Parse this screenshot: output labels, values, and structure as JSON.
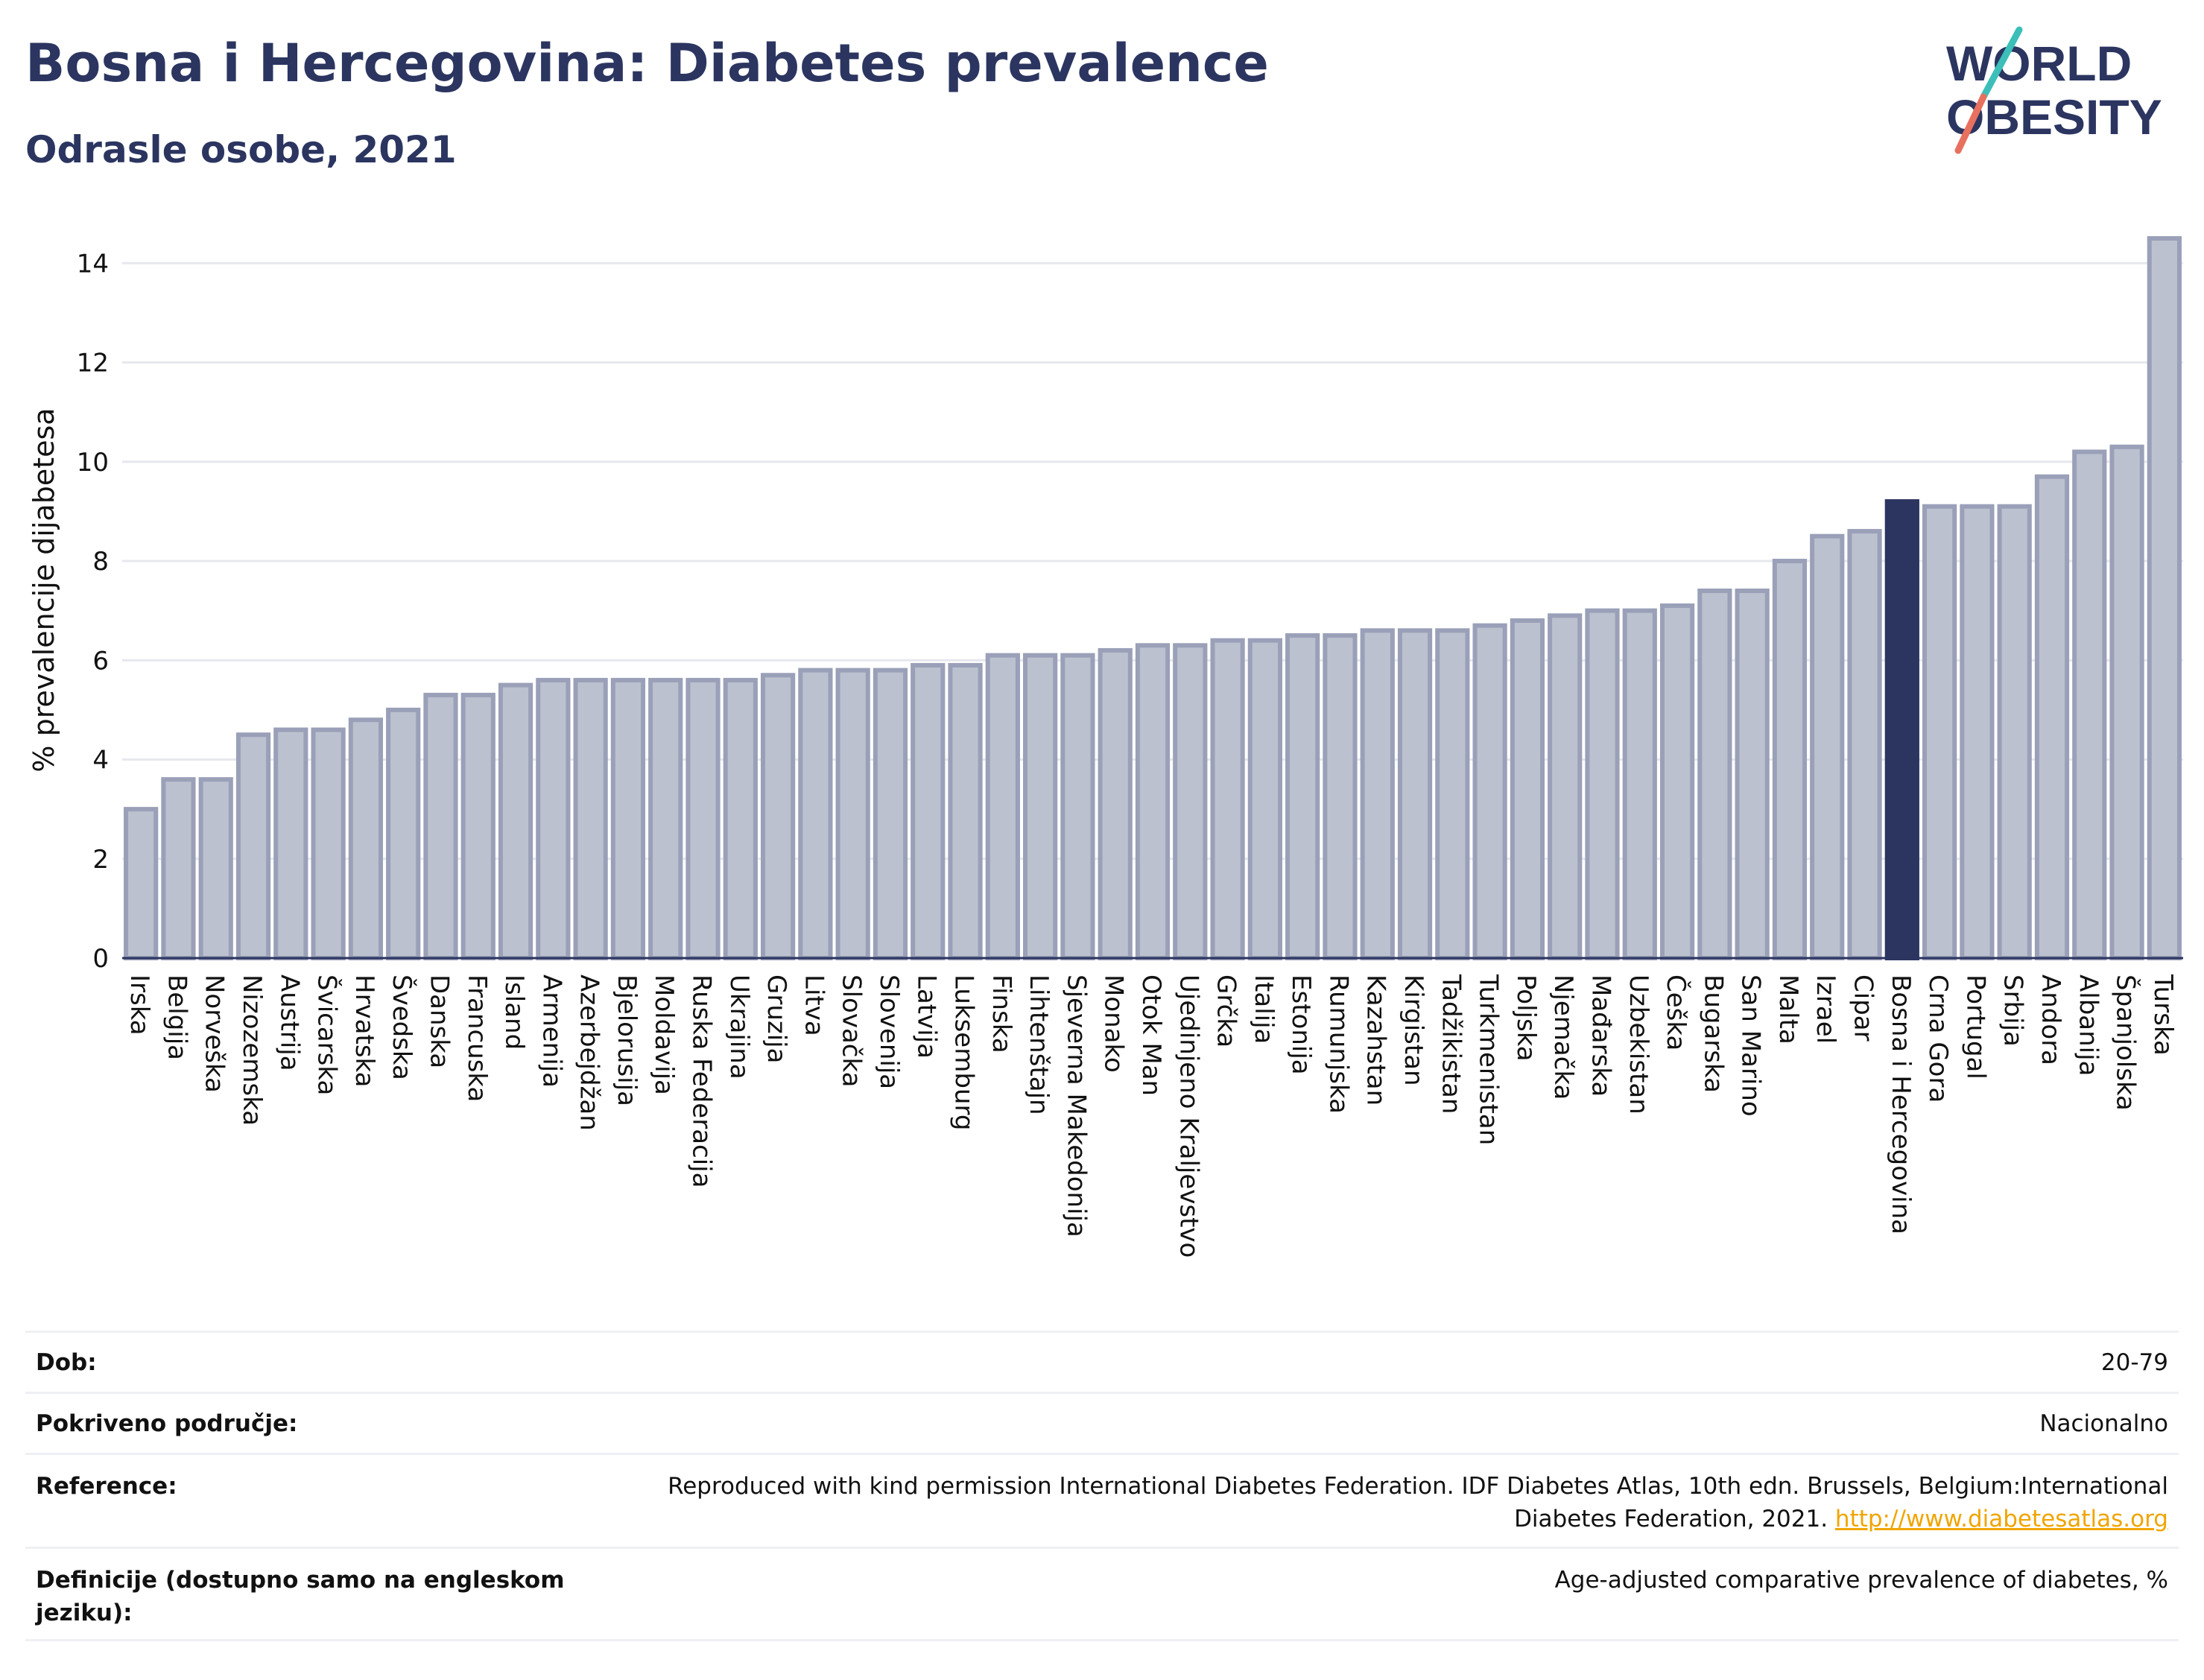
{
  "header": {
    "title": "Bosna i Hercegovina: Diabetes prevalence",
    "subtitle": "Odrasle osobe, 2021"
  },
  "logo": {
    "line1": "WORLD",
    "line2": "OBESITY",
    "accent_teal": "#3bbfb8",
    "accent_coral": "#e8705f",
    "text_color": "#2b3560"
  },
  "colors": {
    "bar_default": "#bcc1cf",
    "bar_border": "#9aa0b8",
    "bar_highlight": "#2b3560",
    "grid": "#e6e8ee",
    "text": "#2b3560"
  },
  "chart_data": {
    "type": "bar",
    "ylabel": "% prevalencije dijabetesa",
    "ylim": [
      0,
      14.8
    ],
    "yticks": [
      0,
      2,
      4,
      6,
      8,
      10,
      12,
      14
    ],
    "grid": true,
    "highlight": "Bosna i Hercegovina",
    "categories": [
      "Irska",
      "Belgija",
      "Norveška",
      "Nizozemska",
      "Austrija",
      "Švicarska",
      "Hrvatska",
      "Švedska",
      "Danska",
      "Francuska",
      "Island",
      "Armenija",
      "Azerbejdžan",
      "Bjelorusija",
      "Moldavija",
      "Ruska Federacija",
      "Ukrajina",
      "Gruzija",
      "Litva",
      "Slovačka",
      "Slovenija",
      "Latvija",
      "Luksemburg",
      "Finska",
      "Lihtenštajn",
      "Sjeverna Makedonija",
      "Monako",
      "Otok Man",
      "Ujedinjeno Kraljevstvo",
      "Grčka",
      "Italija",
      "Estonija",
      "Rumunjska",
      "Kazahstan",
      "Kirgistan",
      "Tadžikistan",
      "Turkmenistan",
      "Poljska",
      "Njemačka",
      "Mađarska",
      "Uzbekistan",
      "Češka",
      "Bugarska",
      "San Marino",
      "Malta",
      "Izrael",
      "Cipar",
      "Bosna i Hercegovina",
      "Crna Gora",
      "Portugal",
      "Srbija",
      "Andora",
      "Albanija",
      "Španjolska",
      "Turska"
    ],
    "values": [
      3.0,
      3.6,
      3.6,
      4.5,
      4.6,
      4.6,
      4.8,
      5.0,
      5.3,
      5.3,
      5.5,
      5.6,
      5.6,
      5.6,
      5.6,
      5.6,
      5.6,
      5.7,
      5.8,
      5.8,
      5.8,
      5.9,
      5.9,
      6.1,
      6.1,
      6.1,
      6.2,
      6.3,
      6.3,
      6.4,
      6.4,
      6.5,
      6.5,
      6.6,
      6.6,
      6.6,
      6.7,
      6.8,
      6.9,
      7.0,
      7.0,
      7.1,
      7.4,
      7.4,
      8.0,
      8.5,
      8.6,
      9.2,
      9.1,
      9.1,
      9.1,
      9.7,
      10.2,
      10.3,
      14.5
    ]
  },
  "info": {
    "rows": [
      {
        "label": "Dob:",
        "value": "20-79"
      },
      {
        "label": "Pokriveno područje:",
        "value": "Nacionalno"
      },
      {
        "label": "Reference:",
        "value": "Reproduced with kind permission International Diabetes Federation.  IDF Diabetes Atlas, 10th edn. Brussels, Belgium:International Diabetes Federation, 2021. ",
        "link": "http://www.diabetesatlas.org"
      },
      {
        "label": "Definicije (dostupno samo na engleskom jeziku):",
        "value": "Age-adjusted comparative prevalence of diabetes, %"
      }
    ]
  }
}
